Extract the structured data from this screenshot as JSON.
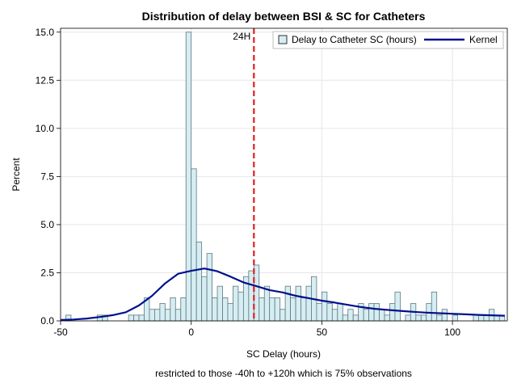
{
  "chart_data": {
    "type": "bar",
    "title": "Distribution of delay between BSI & SC for Catheters",
    "xlabel": "SC Delay (hours)",
    "ylabel": "Percent",
    "footnote": "restricted to those -40h to +120h which is  75% observations",
    "xlim": [
      -50,
      121
    ],
    "ylim": [
      0,
      15.2
    ],
    "x_ticks": [
      -50,
      0,
      50,
      100
    ],
    "x_tick_labels": [
      "-50",
      "0",
      "50",
      "100"
    ],
    "y_ticks": [
      0,
      2.5,
      5,
      7.5,
      10,
      12.5,
      15
    ],
    "y_tick_labels": [
      "0.0",
      "2.5",
      "5.0",
      "7.5",
      "10.0",
      "12.5",
      "15.0"
    ],
    "grid": true,
    "legend_position": "top-right",
    "bin_width": 2,
    "histogram": {
      "name": "Delay to Catheter SC (hours)",
      "bin_centers": [
        -47,
        -35,
        -33,
        -23,
        -21,
        -19,
        -17,
        -15,
        -13,
        -11,
        -9,
        -7,
        -5,
        -3,
        -1,
        1,
        3,
        5,
        7,
        9,
        11,
        13,
        15,
        17,
        19,
        21,
        23,
        25,
        27,
        29,
        31,
        33,
        35,
        37,
        39,
        41,
        43,
        45,
        47,
        49,
        51,
        53,
        55,
        57,
        59,
        61,
        63,
        65,
        67,
        69,
        71,
        73,
        75,
        77,
        79,
        83,
        85,
        87,
        89,
        91,
        93,
        95,
        97,
        101,
        109,
        111,
        113,
        115,
        117,
        119
      ],
      "values": [
        0.3,
        0.3,
        0.3,
        0.3,
        0.3,
        0.3,
        1.2,
        0.6,
        0.6,
        0.9,
        0.6,
        1.2,
        0.6,
        1.2,
        15.0,
        7.9,
        4.1,
        2.3,
        3.5,
        1.2,
        1.8,
        1.2,
        0.9,
        1.8,
        1.5,
        2.3,
        2.6,
        2.9,
        1.2,
        1.8,
        1.2,
        1.2,
        0.6,
        1.8,
        1.2,
        1.8,
        1.2,
        1.8,
        2.3,
        0.9,
        1.5,
        0.9,
        0.6,
        0.9,
        0.3,
        0.6,
        0.3,
        0.9,
        0.6,
        0.9,
        0.9,
        0.6,
        0.3,
        0.9,
        1.5,
        0.3,
        0.9,
        0.3,
        0.3,
        0.9,
        1.5,
        0.3,
        0.6,
        0.3,
        0.3,
        0.3,
        0.3,
        0.6,
        0.3,
        0.3
      ]
    },
    "kernel": {
      "name": "Kernel",
      "x": [
        -50,
        -45,
        -40,
        -35,
        -30,
        -25,
        -20,
        -15,
        -10,
        -5,
        0,
        5,
        10,
        15,
        20,
        25,
        30,
        35,
        40,
        45,
        50,
        55,
        60,
        65,
        70,
        75,
        80,
        85,
        90,
        95,
        100,
        105,
        110,
        115,
        120
      ],
      "y": [
        0.05,
        0.07,
        0.12,
        0.2,
        0.3,
        0.45,
        0.8,
        1.3,
        1.95,
        2.45,
        2.6,
        2.72,
        2.58,
        2.3,
        2.0,
        1.8,
        1.6,
        1.48,
        1.3,
        1.18,
        1.05,
        0.95,
        0.83,
        0.72,
        0.63,
        0.57,
        0.52,
        0.47,
        0.43,
        0.4,
        0.37,
        0.34,
        0.31,
        0.29,
        0.27
      ]
    },
    "reference_line": {
      "x": 24,
      "label": "24H"
    },
    "colors": {
      "bar_fill": "#d6eef2",
      "bar_stroke": "#5e7782",
      "kernel": "#00108c",
      "reference": "#e21f1f",
      "grid": "#e6e6e6",
      "axis": "#000000"
    }
  }
}
